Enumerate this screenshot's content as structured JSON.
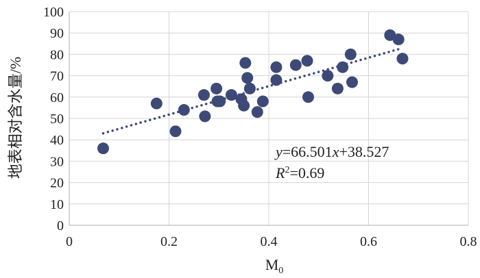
{
  "chart_data": {
    "type": "scatter",
    "title": "",
    "xlabel": "M",
    "xlabel_subscript": "0",
    "ylabel": "地表相对含水量/%",
    "xlim": [
      0,
      0.8
    ],
    "ylim": [
      0,
      100
    ],
    "xticks": [
      0,
      0.2,
      0.4,
      0.6,
      0.8
    ],
    "xtick_labels": [
      "0",
      "0.2",
      "0.4",
      "0.6",
      "0.8"
    ],
    "yticks": [
      0,
      10,
      20,
      30,
      40,
      50,
      60,
      70,
      80,
      90,
      100
    ],
    "ytick_labels": [
      "0",
      "10",
      "20",
      "30",
      "40",
      "50",
      "60",
      "70",
      "80",
      "90",
      "100"
    ],
    "grid": true,
    "legend": "none",
    "marker_color": "#3d4a78",
    "trendline_color": "#3d4a78",
    "points": [
      {
        "x": 0.068,
        "y": 36
      },
      {
        "x": 0.175,
        "y": 57
      },
      {
        "x": 0.213,
        "y": 44
      },
      {
        "x": 0.23,
        "y": 54
      },
      {
        "x": 0.27,
        "y": 61
      },
      {
        "x": 0.272,
        "y": 51
      },
      {
        "x": 0.295,
        "y": 64
      },
      {
        "x": 0.297,
        "y": 58
      },
      {
        "x": 0.302,
        "y": 58
      },
      {
        "x": 0.325,
        "y": 61
      },
      {
        "x": 0.345,
        "y": 59
      },
      {
        "x": 0.35,
        "y": 56
      },
      {
        "x": 0.353,
        "y": 76
      },
      {
        "x": 0.357,
        "y": 69
      },
      {
        "x": 0.362,
        "y": 64
      },
      {
        "x": 0.377,
        "y": 53
      },
      {
        "x": 0.388,
        "y": 58
      },
      {
        "x": 0.415,
        "y": 74
      },
      {
        "x": 0.415,
        "y": 68
      },
      {
        "x": 0.454,
        "y": 75
      },
      {
        "x": 0.477,
        "y": 77
      },
      {
        "x": 0.479,
        "y": 60
      },
      {
        "x": 0.518,
        "y": 70
      },
      {
        "x": 0.538,
        "y": 64
      },
      {
        "x": 0.548,
        "y": 74
      },
      {
        "x": 0.564,
        "y": 80
      },
      {
        "x": 0.567,
        "y": 67
      },
      {
        "x": 0.643,
        "y": 89
      },
      {
        "x": 0.66,
        "y": 87
      },
      {
        "x": 0.668,
        "y": 78
      }
    ],
    "trendline": {
      "slope": 66.501,
      "intercept": 38.527,
      "x_start": 0.068,
      "x_end": 0.668
    },
    "annotation": {
      "equation_y": "y",
      "equation_eq": "=66.501",
      "equation_x": "x",
      "equation_rest": "+38.527",
      "r2_label": "R",
      "r2_sup": "2",
      "r2_value": "=0.69"
    }
  }
}
